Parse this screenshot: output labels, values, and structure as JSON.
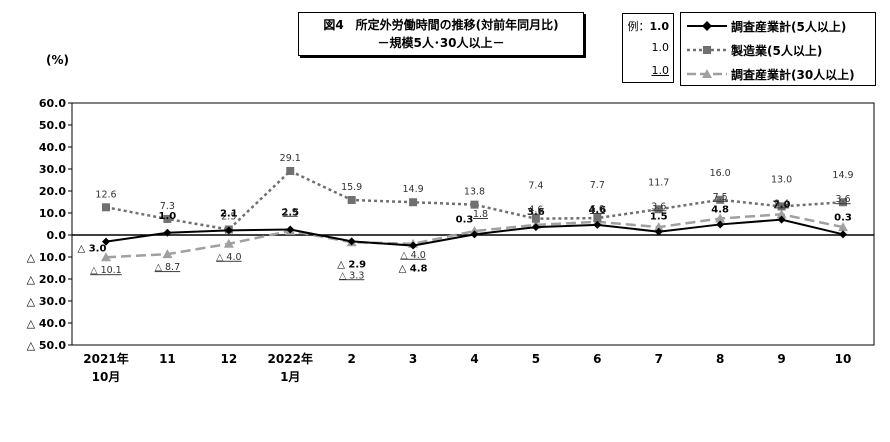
{
  "chart_data": {
    "type": "line",
    "title": "図4　所定外労働時間の推移(対前年同月比)",
    "subtitle": "－規模5人･30人以上－",
    "ylabel": "(%)",
    "ylim": [
      -50,
      60
    ],
    "yticks": [
      60,
      50,
      40,
      30,
      20,
      10,
      0,
      -10,
      -20,
      -30,
      -40,
      -50
    ],
    "ytick_labels": [
      "60.0",
      "50.0",
      "40.0",
      "30.0",
      "20.0",
      "10.0",
      "0.0",
      "△ 10.0",
      "△ 20.0",
      "△ 30.0",
      "△ 40.0",
      "△ 50.0"
    ],
    "categories": [
      {
        "line1": "2021年",
        "line2": "10月"
      },
      {
        "line1": "11",
        "line2": ""
      },
      {
        "line1": "12",
        "line2": ""
      },
      {
        "line1": "2022年",
        "line2": "1月"
      },
      {
        "line1": "2",
        "line2": ""
      },
      {
        "line1": "3",
        "line2": ""
      },
      {
        "line1": "4",
        "line2": ""
      },
      {
        "line1": "5",
        "line2": ""
      },
      {
        "line1": "6",
        "line2": ""
      },
      {
        "line1": "7",
        "line2": ""
      },
      {
        "line1": "8",
        "line2": ""
      },
      {
        "line1": "9",
        "line2": ""
      },
      {
        "line1": "10",
        "line2": ""
      }
    ],
    "grid": false,
    "legend_position": "top-right",
    "legend_example": {
      "label": "例：",
      "values": [
        "1.0",
        "1.0",
        "1.0"
      ]
    },
    "series": [
      {
        "name": "調査産業計(5人以上)",
        "color": "#000000",
        "style": "solid",
        "marker": "diamond",
        "values": [
          -3.0,
          1.0,
          2.1,
          2.5,
          -2.9,
          -4.8,
          0.3,
          3.6,
          4.6,
          1.5,
          4.8,
          7.0,
          0.3
        ],
        "labels": [
          "△ 3.0",
          "1.0",
          "2.1",
          "2.5",
          "△ 2.9",
          "△ 4.8",
          "0.3",
          "3.6",
          "4.6",
          "1.5",
          "4.8",
          "7.0",
          "0.3"
        ]
      },
      {
        "name": "製造業(5人以上)",
        "color": "#707070",
        "style": "dotted",
        "marker": "square",
        "values": [
          12.6,
          7.3,
          2.5,
          29.1,
          15.9,
          14.9,
          13.8,
          7.4,
          7.7,
          11.7,
          16.0,
          13.0,
          14.9
        ],
        "labels": [
          "12.6",
          "7.3",
          "2.5",
          "29.1",
          "15.9",
          "14.9",
          "13.8",
          "7.4",
          "7.7",
          "11.7",
          "16.0",
          "13.0",
          "14.9"
        ]
      },
      {
        "name": "調査産業計(30人以上)",
        "color": "#a0a0a0",
        "style": "dashed",
        "marker": "triangle",
        "values": [
          -10.1,
          -8.7,
          -4.0,
          1.9,
          -3.3,
          -4.0,
          1.8,
          4.6,
          6.0,
          3.6,
          7.5,
          9.4,
          3.6
        ],
        "labels": [
          "△ 10.1",
          "△ 8.7",
          "△ 4.0",
          "1.9",
          "△ 3.3",
          "△ 4.0",
          "1.8",
          "4.6",
          "6.0",
          "3.6",
          "7.5",
          "9.4",
          "3.6"
        ]
      }
    ]
  }
}
